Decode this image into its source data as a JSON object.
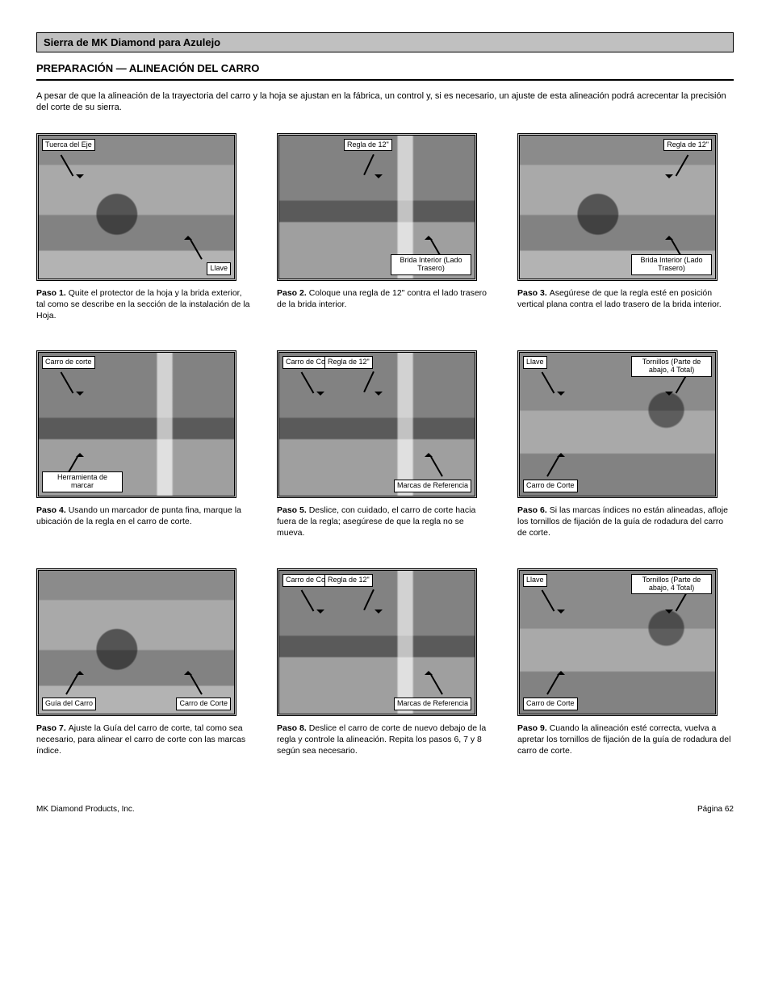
{
  "header": "Sierra de MK Diamond para Azulejo",
  "section_title": "PREPARACIÓN — ALINEACIÓN DEL CARRO",
  "intro": "A pesar de que la alineación de la trayectoria del carro y la hoja se ajustan en la fábrica, un control y, si es necesario, un ajuste de esta alineación podrá acrecentar la precisión del corte de su sierra.",
  "figs": [
    {
      "labels": [
        {
          "text": "Tuerca del Eje",
          "pos": "tl"
        },
        {
          "text": "Llave",
          "pos": "br"
        }
      ],
      "step_no": "Paso 1.",
      "step": "Quite el protector de la hoja y la brida exterior, tal como se describe en la sección de la instalación de la Hoja."
    },
    {
      "labels": [
        {
          "text": "Regla de 12\"",
          "pos": "tc"
        },
        {
          "text": "Brida Interior (Lado Trasero)",
          "pos": "br"
        }
      ],
      "step_no": "Paso 2.",
      "step": "Coloque una regla de 12\" contra el lado trasero de la brida interior."
    },
    {
      "labels": [
        {
          "text": "Regla de 12\"",
          "pos": "tr"
        },
        {
          "text": "Brida Interior (Lado Trasero)",
          "pos": "br"
        }
      ],
      "step_no": "Paso 3.",
      "step": "Asegúrese de que la regla esté en posición vertical plana contra el lado trasero de la brida interior."
    },
    {
      "labels": [
        {
          "text": "Carro de corte",
          "pos": "tl"
        },
        {
          "text": "Herramienta de marcar",
          "pos": "bl"
        }
      ],
      "step_no": "Paso 4.",
      "step": "Usando un marcador de punta fina, marque la ubicación de la regla en el carro de corte."
    },
    {
      "labels": [
        {
          "text": "Carro de Corte",
          "pos": "tl"
        },
        {
          "text": "Regla de 12\"",
          "pos": "tc2"
        },
        {
          "text": "Marcas de Referencia",
          "pos": "br"
        }
      ],
      "step_no": "Paso 5.",
      "step": "Deslice, con cuidado, el carro de corte hacia fuera de la regla; asegúrese de que la regla no se mueva."
    },
    {
      "labels": [
        {
          "text": "Llave",
          "pos": "tl"
        },
        {
          "text": "Tornillos (Parte de abajo, 4 Total)",
          "pos": "tr"
        },
        {
          "text": "Carro de Corte",
          "pos": "bl"
        }
      ],
      "step_no": "Paso 6.",
      "step": "Si las marcas índices no están alineadas, afloje los tornillos de fijación de la guía de rodadura del carro de corte."
    },
    {
      "labels": [
        {
          "text": "Guía del Carro",
          "pos": "bl"
        },
        {
          "text": "Carro de Corte",
          "pos": "br"
        }
      ],
      "step_no": "Paso 7.",
      "step": "Ajuste la Guía del carro de corte, tal como sea necesario, para alinear el carro de corte con las marcas índice."
    },
    {
      "labels": [
        {
          "text": "Carro de Corte",
          "pos": "tl"
        },
        {
          "text": "Regla de 12\"",
          "pos": "tc2"
        },
        {
          "text": "Marcas de Referencia",
          "pos": "br"
        }
      ],
      "step_no": "Paso 8.",
      "step": "Deslice el carro de corte de nuevo debajo de la regla y controle la alineación. Repita los pasos 6, 7 y 8 según sea necesario."
    },
    {
      "labels": [
        {
          "text": "Llave",
          "pos": "tl"
        },
        {
          "text": "Tornillos (Parte de abajo, 4 Total)",
          "pos": "tr"
        },
        {
          "text": "Carro de Corte",
          "pos": "bl"
        }
      ],
      "step_no": "Paso 9.",
      "step": "Cuando la alineación esté correcta, vuelva a apretar los tornillos de fijación de la guía de rodadura del carro de corte."
    }
  ],
  "footer_left": "MK Diamond Products, Inc.",
  "footer_right": "Página 62"
}
